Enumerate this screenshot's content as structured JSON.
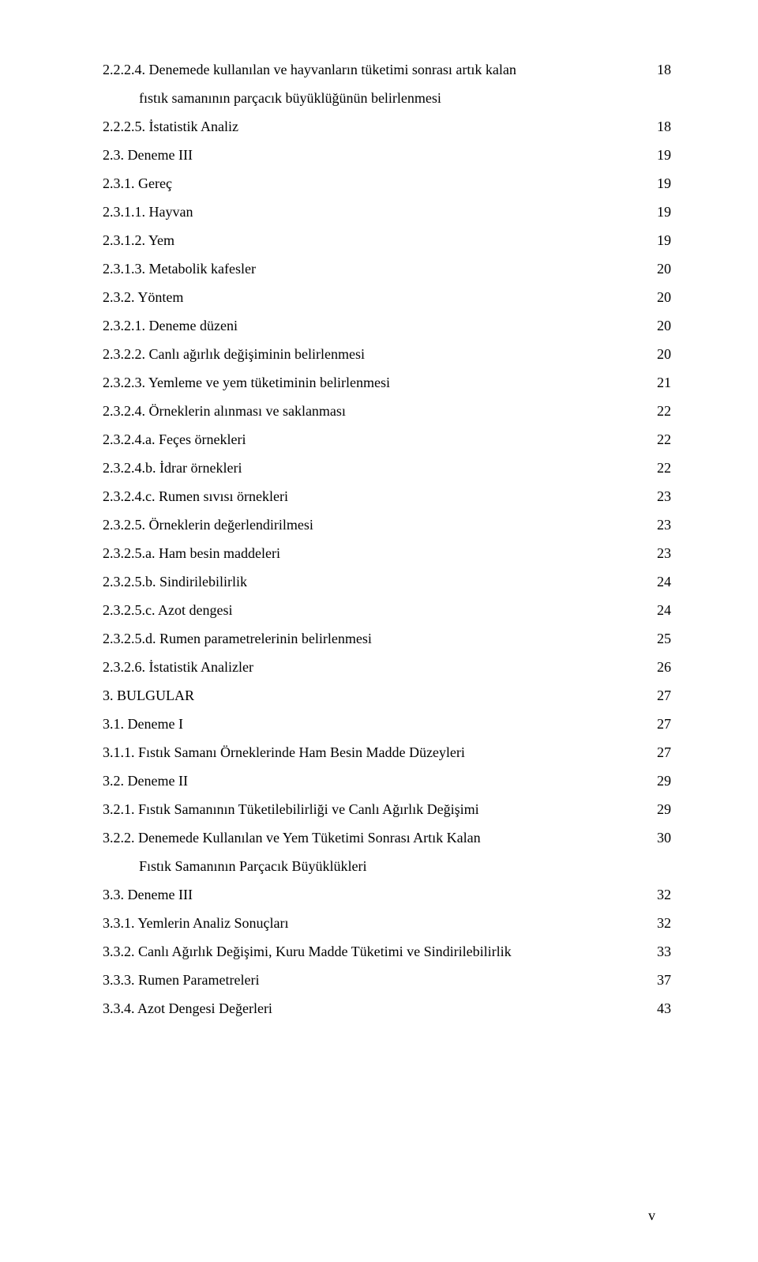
{
  "toc": {
    "rows": [
      {
        "label": "2.2.2.4. Denemede kullanılan ve hayvanların tüketimi sonrası artık kalan",
        "page": "18",
        "indent": 0
      },
      {
        "label": "fıstık samanının parçacık büyüklüğünün belirlenmesi",
        "indent": 1
      },
      {
        "label": "2.2.2.5. İstatistik Analiz",
        "page": "18",
        "indent": 0
      },
      {
        "label": "2.3. Deneme III",
        "page": "19",
        "indent": 0
      },
      {
        "label": "2.3.1. Gereç",
        "page": "19",
        "indent": 0
      },
      {
        "label": "2.3.1.1. Hayvan",
        "page": "19",
        "indent": 0
      },
      {
        "label": "2.3.1.2. Yem",
        "page": "19",
        "indent": 0
      },
      {
        "label": "2.3.1.3. Metabolik kafesler",
        "page": "20",
        "indent": 0
      },
      {
        "label": "2.3.2. Yöntem",
        "page": "20",
        "indent": 0
      },
      {
        "label": "2.3.2.1. Deneme düzeni",
        "page": "20",
        "indent": 0
      },
      {
        "label": "2.3.2.2. Canlı ağırlık değişiminin belirlenmesi",
        "page": "20",
        "indent": 0
      },
      {
        "label": "2.3.2.3. Yemleme ve yem tüketiminin belirlenmesi",
        "page": "21",
        "indent": 0
      },
      {
        "label": "2.3.2.4. Örneklerin alınması ve saklanması",
        "page": "22",
        "indent": 0
      },
      {
        "label": "2.3.2.4.a. Feçes örnekleri",
        "page": "22",
        "indent": 0
      },
      {
        "label": "2.3.2.4.b. İdrar örnekleri",
        "page": "22",
        "indent": 0
      },
      {
        "label": "2.3.2.4.c. Rumen sıvısı örnekleri",
        "page": "23",
        "indent": 0
      },
      {
        "label": "2.3.2.5. Örneklerin değerlendirilmesi",
        "page": "23",
        "indent": 0
      },
      {
        "label": "2.3.2.5.a. Ham besin maddeleri",
        "page": "23",
        "indent": 0
      },
      {
        "label": "2.3.2.5.b. Sindirilebilirlik",
        "page": "24",
        "indent": 0
      },
      {
        "label": "2.3.2.5.c. Azot dengesi",
        "page": "24",
        "indent": 0
      },
      {
        "label": "2.3.2.5.d. Rumen parametrelerinin belirlenmesi",
        "page": "25",
        "indent": 0
      },
      {
        "label": "2.3.2.6. İstatistik Analizler",
        "page": "26",
        "indent": 0
      },
      {
        "label": "3. BULGULAR",
        "page": "27",
        "indent": 0
      },
      {
        "label": "3.1. Deneme I",
        "page": "27",
        "indent": 0
      },
      {
        "label": "3.1.1. Fıstık Samanı Örneklerinde Ham Besin Madde Düzeyleri",
        "page": "27",
        "indent": 0
      },
      {
        "label": "3.2. Deneme II",
        "page": "29",
        "indent": 0
      },
      {
        "label": "3.2.1. Fıstık Samanının Tüketilebilirliği ve Canlı Ağırlık Değişimi",
        "page": "29",
        "indent": 0
      },
      {
        "label": "3.2.2. Denemede Kullanılan ve Yem Tüketimi Sonrası Artık Kalan",
        "page": "30",
        "indent": 0
      },
      {
        "label": "Fıstık Samanının Parçacık Büyüklükleri",
        "indent": 1
      },
      {
        "label": "3.3. Deneme III",
        "page": "32",
        "indent": 0
      },
      {
        "label": "3.3.1. Yemlerin Analiz Sonuçları",
        "page": "32",
        "indent": 0
      },
      {
        "label": "3.3.2. Canlı Ağırlık Değişimi, Kuru Madde Tüketimi ve Sindirilebilirlik",
        "page": "33",
        "indent": 0
      },
      {
        "label": "3.3.3. Rumen Parametreleri",
        "page": "37",
        "indent": 0
      },
      {
        "label": "3.3.4. Azot Dengesi Değerleri",
        "page": "43",
        "indent": 0
      }
    ]
  },
  "footer": {
    "pageNumber": "v"
  }
}
